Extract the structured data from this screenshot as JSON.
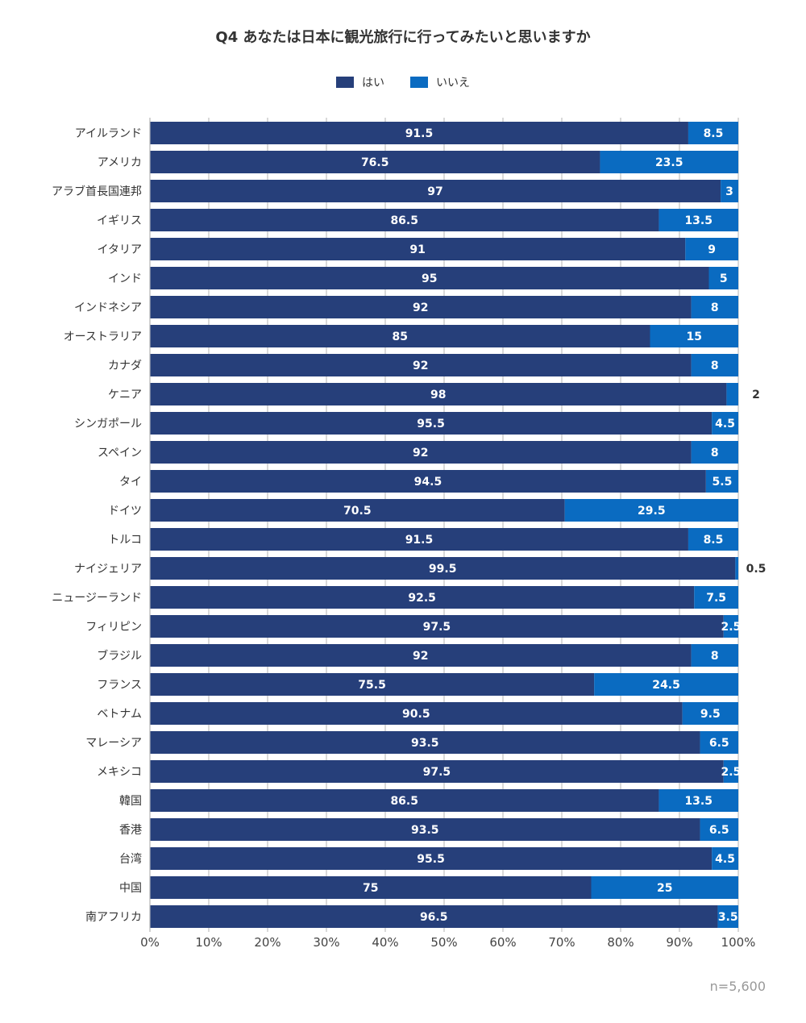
{
  "chart_data": {
    "type": "bar",
    "orientation": "horizontal",
    "stacked": true,
    "title": "Q4 あなたは日本に観光旅行に行ってみたいと思いますか",
    "legend_placement": "top",
    "categories": [
      "アイルランド",
      "アメリカ",
      "アラブ首長国連邦",
      "イギリス",
      "イタリア",
      "インド",
      "インドネシア",
      "オーストラリア",
      "カナダ",
      "ケニア",
      "シンガポール",
      "スペイン",
      "タイ",
      "ドイツ",
      "トルコ",
      "ナイジェリア",
      "ニュージーランド",
      "フィリピン",
      "ブラジル",
      "フランス",
      "ベトナム",
      "マレーシア",
      "メキシコ",
      "韓国",
      "香港",
      "台湾",
      "中国",
      "南アフリカ"
    ],
    "series": [
      {
        "name": "はい",
        "color": "#263F7A",
        "values": [
          91.5,
          76.5,
          97,
          86.5,
          91,
          95,
          92,
          85,
          92,
          98,
          95.5,
          92,
          94.5,
          70.5,
          91.5,
          99.5,
          92.5,
          97.5,
          92,
          75.5,
          90.5,
          93.5,
          97.5,
          86.5,
          93.5,
          95.5,
          75,
          96.5
        ],
        "labels": [
          "91.5",
          "76.5",
          "97",
          "86.5",
          "91",
          "95",
          "92",
          "85",
          "92",
          "98",
          "95.5",
          "92",
          "94.5",
          "70.5",
          "91.5",
          "99.5",
          "92.5",
          "97.5",
          "92",
          "75.5",
          "90.5",
          "93.5",
          "97.5",
          "86.5",
          "93.5",
          "95.5",
          "75",
          "96.5"
        ]
      },
      {
        "name": "いいえ",
        "color": "#0A6BC1",
        "values": [
          8.5,
          23.5,
          3,
          13.5,
          9,
          5,
          8,
          15,
          8,
          2,
          4.5,
          8,
          5.5,
          29.5,
          8.5,
          0.5,
          7.5,
          2.5,
          8,
          24.5,
          9.5,
          6.5,
          2.5,
          13.5,
          6.5,
          4.5,
          25,
          3.5
        ],
        "labels": [
          "8.5",
          "23.5",
          "3",
          "13.5",
          "9",
          "5",
          "8",
          "15",
          "8",
          "2",
          "4.5",
          "8",
          "5.5",
          "29.5",
          "8.5",
          "0.5",
          "7.5",
          "2.5",
          "8",
          "24.5",
          "9.5",
          "6.5",
          "2.5",
          "13.5",
          "6.5",
          "4.5",
          "25",
          "3.5"
        ]
      }
    ],
    "x_ticks": [
      "0%",
      "10%",
      "20%",
      "30%",
      "40%",
      "50%",
      "60%",
      "70%",
      "80%",
      "90%",
      "100%"
    ],
    "xlim": [
      0,
      100
    ],
    "grid": true,
    "n_note": "n=5,600"
  }
}
